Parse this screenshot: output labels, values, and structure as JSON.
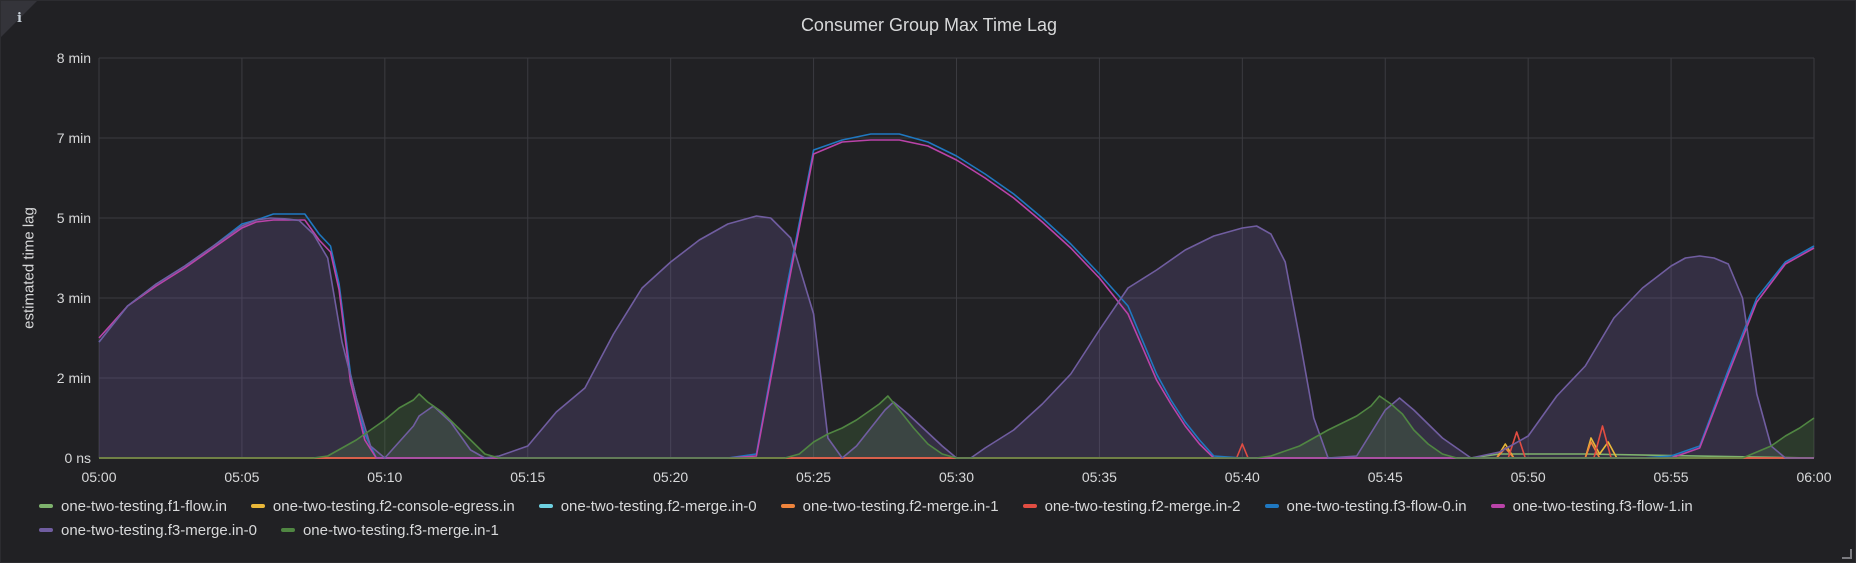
{
  "panel": {
    "info_icon": "info-icon",
    "info_glyph": "i"
  },
  "chart_data": {
    "type": "area",
    "title": "Consumer Group Max Time Lag",
    "ylabel": "estimated time lag",
    "xlabel": "",
    "x_ticks": [
      "05:00",
      "05:05",
      "05:10",
      "05:15",
      "05:20",
      "05:25",
      "05:30",
      "05:35",
      "05:40",
      "05:45",
      "05:50",
      "05:55",
      "06:00"
    ],
    "y_ticks": [
      {
        "label": "0 ns",
        "value": 0
      },
      {
        "label": "2 min",
        "value": 2
      },
      {
        "label": "3 min",
        "value": 3
      },
      {
        "label": "5 min",
        "value": 5
      },
      {
        "label": "7 min",
        "value": 7
      },
      {
        "label": "8 min",
        "value": 8
      }
    ],
    "xlim": [
      0,
      60
    ],
    "y_unit": "min",
    "grid": true,
    "legend_position": "bottom",
    "series": [
      {
        "name": "one-two-testing.f1-flow.in",
        "color": "#7eb26d",
        "fill": false,
        "points": [
          [
            0,
            0
          ],
          [
            48,
            0
          ],
          [
            49,
            0.1
          ],
          [
            52,
            0.1
          ],
          [
            60,
            0
          ]
        ]
      },
      {
        "name": "one-two-testing.f2-console-egress.in",
        "color": "#eab839",
        "fill": false,
        "points": [
          [
            0,
            0
          ],
          [
            48.9,
            0
          ],
          [
            49.2,
            0.35
          ],
          [
            49.5,
            0
          ],
          [
            52,
            0
          ],
          [
            52.2,
            0.5
          ],
          [
            52.5,
            0.1
          ],
          [
            52.8,
            0.4
          ],
          [
            53.1,
            0
          ],
          [
            60,
            0
          ]
        ]
      },
      {
        "name": "one-two-testing.f2-merge.in-0",
        "color": "#6ed0e0",
        "fill": false,
        "points": [
          [
            0,
            0
          ],
          [
            60,
            0
          ]
        ]
      },
      {
        "name": "one-two-testing.f2-merge.in-1",
        "color": "#ef843c",
        "fill": false,
        "points": [
          [
            0,
            0
          ],
          [
            48.9,
            0
          ],
          [
            49.2,
            0.25
          ],
          [
            49.5,
            0
          ],
          [
            52,
            0
          ],
          [
            52.2,
            0.4
          ],
          [
            52.5,
            0
          ],
          [
            60,
            0
          ]
        ]
      },
      {
        "name": "one-two-testing.f2-merge.in-2",
        "color": "#e24d42",
        "fill": false,
        "points": [
          [
            0,
            0
          ],
          [
            39.8,
            0
          ],
          [
            40,
            0.35
          ],
          [
            40.2,
            0
          ],
          [
            49.3,
            0
          ],
          [
            49.6,
            0.65
          ],
          [
            49.9,
            0
          ],
          [
            52.3,
            0
          ],
          [
            52.6,
            0.8
          ],
          [
            52.9,
            0
          ],
          [
            60,
            0
          ]
        ]
      },
      {
        "name": "one-two-testing.f3-flow-0.in",
        "color": "#1f78c1",
        "fill": false,
        "points": [
          [
            0,
            2.45
          ],
          [
            1,
            2.9
          ],
          [
            2,
            3.35
          ],
          [
            3,
            3.8
          ],
          [
            4,
            4.3
          ],
          [
            5,
            4.85
          ],
          [
            5.5,
            4.95
          ],
          [
            6.1,
            5.1
          ],
          [
            7.2,
            5.1
          ],
          [
            7.7,
            4.6
          ],
          [
            8.1,
            4.3
          ],
          [
            8.4,
            3.35
          ],
          [
            8.8,
            2.05
          ],
          [
            9.3,
            0.6
          ],
          [
            9.7,
            0
          ],
          [
            22,
            0
          ],
          [
            23,
            0.1
          ],
          [
            24,
            3.05
          ],
          [
            25,
            6.7
          ],
          [
            26,
            6.95
          ],
          [
            27,
            7.05
          ],
          [
            28,
            7.05
          ],
          [
            29,
            6.9
          ],
          [
            30,
            6.55
          ],
          [
            31,
            6.1
          ],
          [
            32,
            5.6
          ],
          [
            33,
            5.0
          ],
          [
            34,
            4.35
          ],
          [
            35,
            3.6
          ],
          [
            36,
            2.9
          ],
          [
            37,
            2.05
          ],
          [
            37.5,
            1.45
          ],
          [
            38,
            0.9
          ],
          [
            38.5,
            0.45
          ],
          [
            39,
            0.05
          ],
          [
            40,
            0
          ],
          [
            54,
            0
          ],
          [
            55,
            0.05
          ],
          [
            56,
            0.3
          ],
          [
            57,
            2.1
          ],
          [
            58,
            3.0
          ],
          [
            59,
            3.9
          ],
          [
            60,
            4.3
          ]
        ]
      },
      {
        "name": "one-two-testing.f3-flow-1.in",
        "color": "#ba43a9",
        "fill": false,
        "points": [
          [
            0,
            2.5
          ],
          [
            1,
            2.9
          ],
          [
            2,
            3.3
          ],
          [
            3,
            3.75
          ],
          [
            4,
            4.25
          ],
          [
            5,
            4.75
          ],
          [
            5.5,
            4.9
          ],
          [
            6.1,
            4.95
          ],
          [
            7.2,
            4.95
          ],
          [
            7.7,
            4.45
          ],
          [
            8.1,
            4.15
          ],
          [
            8.4,
            3.2
          ],
          [
            8.8,
            1.9
          ],
          [
            9.3,
            0.45
          ],
          [
            9.7,
            0
          ],
          [
            22,
            0
          ],
          [
            23,
            0.05
          ],
          [
            24,
            2.95
          ],
          [
            25,
            6.6
          ],
          [
            26,
            6.9
          ],
          [
            27,
            6.95
          ],
          [
            28,
            6.95
          ],
          [
            29,
            6.8
          ],
          [
            30,
            6.45
          ],
          [
            31,
            6.0
          ],
          [
            32,
            5.5
          ],
          [
            33,
            4.9
          ],
          [
            34,
            4.25
          ],
          [
            35,
            3.5
          ],
          [
            36,
            2.8
          ],
          [
            37,
            1.95
          ],
          [
            37.5,
            1.35
          ],
          [
            38,
            0.8
          ],
          [
            38.5,
            0.35
          ],
          [
            39,
            0
          ],
          [
            40,
            0
          ],
          [
            54,
            0
          ],
          [
            55,
            0
          ],
          [
            56,
            0.25
          ],
          [
            57,
            2.05
          ],
          [
            58,
            2.95
          ],
          [
            59,
            3.85
          ],
          [
            60,
            4.25
          ]
        ]
      },
      {
        "name": "one-two-testing.f3-merge.in-0",
        "color": "#705da0",
        "fill": true,
        "points": [
          [
            0,
            2.45
          ],
          [
            1,
            2.9
          ],
          [
            2,
            3.35
          ],
          [
            3,
            3.8
          ],
          [
            4,
            4.3
          ],
          [
            5,
            4.8
          ],
          [
            5.5,
            4.95
          ],
          [
            6,
            5.0
          ],
          [
            6.5,
            4.98
          ],
          [
            7,
            4.94
          ],
          [
            7.5,
            4.6
          ],
          [
            8,
            4.0
          ],
          [
            8.5,
            2.45
          ],
          [
            9,
            1.5
          ],
          [
            9.5,
            0.3
          ],
          [
            10,
            0
          ],
          [
            11,
            0.8
          ],
          [
            11.2,
            1.05
          ],
          [
            11.7,
            1.3
          ],
          [
            12.3,
            0.9
          ],
          [
            13,
            0.2
          ],
          [
            13.5,
            0
          ],
          [
            14,
            0.05
          ],
          [
            15,
            0.3
          ],
          [
            16,
            1.15
          ],
          [
            17,
            1.75
          ],
          [
            18,
            2.55
          ],
          [
            19,
            3.25
          ],
          [
            20,
            3.9
          ],
          [
            21,
            4.45
          ],
          [
            22,
            4.85
          ],
          [
            23,
            5.05
          ],
          [
            23.5,
            5.0
          ],
          [
            24.2,
            4.5
          ],
          [
            25,
            2.8
          ],
          [
            25.5,
            0.5
          ],
          [
            26,
            0
          ],
          [
            26.5,
            0.3
          ],
          [
            27.5,
            1.2
          ],
          [
            27.8,
            1.4
          ],
          [
            28.3,
            1.1
          ],
          [
            29.5,
            0.3
          ],
          [
            30,
            0
          ],
          [
            30.5,
            0
          ],
          [
            31,
            0.25
          ],
          [
            32,
            0.7
          ],
          [
            33,
            1.35
          ],
          [
            34,
            2.05
          ],
          [
            35,
            2.6
          ],
          [
            36,
            3.25
          ],
          [
            37,
            3.7
          ],
          [
            38,
            4.2
          ],
          [
            39,
            4.55
          ],
          [
            40,
            4.75
          ],
          [
            40.5,
            4.8
          ],
          [
            41,
            4.6
          ],
          [
            41.5,
            3.9
          ],
          [
            42,
            2.5
          ],
          [
            42.5,
            1.0
          ],
          [
            43,
            0
          ],
          [
            44,
            0.05
          ],
          [
            45,
            1.2
          ],
          [
            45.5,
            1.5
          ],
          [
            46,
            1.2
          ],
          [
            47,
            0.5
          ],
          [
            48,
            0
          ],
          [
            49,
            0.15
          ],
          [
            50,
            0.55
          ],
          [
            51,
            1.55
          ],
          [
            52,
            2.15
          ],
          [
            53,
            2.75
          ],
          [
            54,
            3.25
          ],
          [
            55,
            3.8
          ],
          [
            55.5,
            4.0
          ],
          [
            56,
            4.05
          ],
          [
            56.5,
            4.0
          ],
          [
            57,
            3.85
          ],
          [
            57.5,
            3.0
          ],
          [
            58,
            1.6
          ],
          [
            58.5,
            0.3
          ],
          [
            59,
            0
          ],
          [
            60,
            0
          ]
        ]
      },
      {
        "name": "one-two-testing.f3-merge.in-1",
        "color": "#508642",
        "fill": true,
        "points": [
          [
            0,
            0
          ],
          [
            7.5,
            0
          ],
          [
            8,
            0.05
          ],
          [
            8.5,
            0.25
          ],
          [
            9,
            0.45
          ],
          [
            9.5,
            0.7
          ],
          [
            10,
            0.95
          ],
          [
            10.5,
            1.25
          ],
          [
            11,
            1.45
          ],
          [
            11.2,
            1.6
          ],
          [
            11.5,
            1.4
          ],
          [
            12,
            1.15
          ],
          [
            12.5,
            0.8
          ],
          [
            13,
            0.45
          ],
          [
            13.5,
            0.1
          ],
          [
            14,
            0
          ],
          [
            24,
            0
          ],
          [
            24.5,
            0.1
          ],
          [
            25,
            0.4
          ],
          [
            25.5,
            0.6
          ],
          [
            26,
            0.75
          ],
          [
            26.5,
            0.95
          ],
          [
            27,
            1.2
          ],
          [
            27.3,
            1.35
          ],
          [
            27.6,
            1.55
          ],
          [
            28,
            1.2
          ],
          [
            28.5,
            0.75
          ],
          [
            29,
            0.35
          ],
          [
            29.5,
            0.1
          ],
          [
            30,
            0
          ],
          [
            40.5,
            0
          ],
          [
            41,
            0.05
          ],
          [
            42,
            0.3
          ],
          [
            43,
            0.7
          ],
          [
            44,
            1.05
          ],
          [
            44.5,
            1.3
          ],
          [
            44.8,
            1.55
          ],
          [
            45.2,
            1.35
          ],
          [
            45.6,
            1.1
          ],
          [
            46,
            0.7
          ],
          [
            46.5,
            0.35
          ],
          [
            47,
            0.1
          ],
          [
            47.5,
            0
          ],
          [
            57.5,
            0
          ],
          [
            58,
            0.15
          ],
          [
            58.5,
            0.3
          ],
          [
            59,
            0.55
          ],
          [
            59.5,
            0.75
          ],
          [
            60,
            1.0
          ]
        ]
      }
    ]
  }
}
